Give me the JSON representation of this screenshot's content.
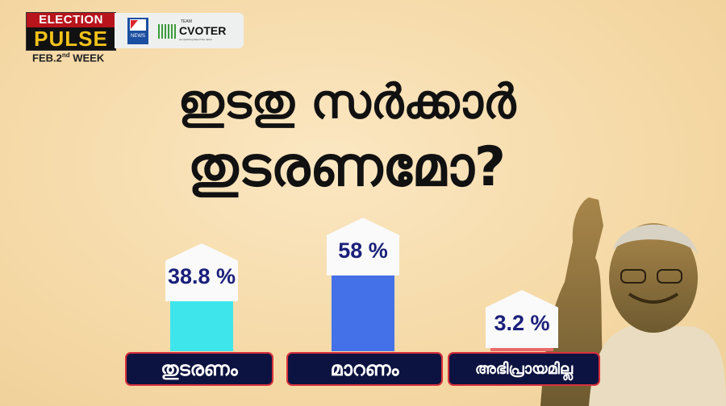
{
  "branding": {
    "show_line1": "ELECTION",
    "show_line2": "PULSE",
    "week": "FEB.2",
    "week_sup": "nd",
    "week_tail": " WEEK",
    "partner1": "NEWS",
    "partner2_team": "TEAM",
    "partner2": "CVOTER",
    "partner2_tagline": "we read the pulse of the nation"
  },
  "headline": {
    "line1": "ഇടതു സർക്കാർ",
    "line2": "തുടരണമോ?"
  },
  "chart_data": {
    "type": "bar",
    "title": "ഇടതു സർക്കാർ തുടരണമോ?",
    "categories": [
      "തുടരണം",
      "മാറണം",
      "അഭിപ്രായമില്ല"
    ],
    "values": [
      38.8,
      58,
      3.2
    ],
    "value_labels": [
      "38.8 %",
      "58 %",
      "3.2 %"
    ],
    "colors": [
      "#3ee6ec",
      "#4571e8",
      "#e86a6a"
    ],
    "ylim": [
      0,
      100
    ],
    "grid": false
  }
}
